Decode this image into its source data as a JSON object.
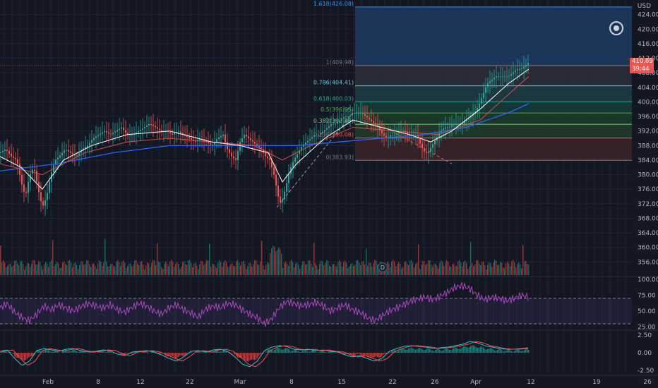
{
  "currency": "USD",
  "last_price": "410.89",
  "countdown": "39:44",
  "event_marker": "D",
  "chart_data": [
    {
      "type": "line",
      "panel": "price",
      "description": "Candlestick price chart with moving averages, Fibonacci retracement and volume",
      "ylim": [
        352,
        428
      ],
      "y_ticks": [
        "424.00",
        "420.00",
        "416.00",
        "412.00",
        "408.00",
        "404.00",
        "400.00",
        "396.00",
        "392.00",
        "388.00",
        "384.00",
        "380.00",
        "376.00",
        "372.00",
        "368.00",
        "364.00",
        "360.00",
        "356.00"
      ],
      "y_tick_values": [
        424,
        420,
        416,
        412,
        408,
        404,
        400,
        396,
        392,
        388,
        384,
        380,
        376,
        372,
        368,
        364,
        360,
        356
      ],
      "x_ticks": [
        "Feb",
        "8",
        "12",
        "22",
        "Mar",
        "8",
        "15",
        "22",
        "26",
        "Apr",
        "12",
        "19",
        "26"
      ],
      "close_path": [
        [
          0,
          386
        ],
        [
          8,
          387
        ],
        [
          16,
          385
        ],
        [
          24,
          384
        ],
        [
          30,
          378
        ],
        [
          36,
          374
        ],
        [
          42,
          380
        ],
        [
          48,
          382
        ],
        [
          54,
          376
        ],
        [
          60,
          371
        ],
        [
          66,
          374
        ],
        [
          72,
          380
        ],
        [
          78,
          384
        ],
        [
          84,
          385
        ],
        [
          92,
          387
        ],
        [
          100,
          386
        ],
        [
          108,
          385
        ],
        [
          116,
          387
        ],
        [
          124,
          388
        ],
        [
          132,
          390
        ],
        [
          140,
          391
        ],
        [
          148,
          392
        ],
        [
          156,
          391
        ],
        [
          164,
          392
        ],
        [
          172,
          393
        ],
        [
          180,
          391
        ],
        [
          188,
          391
        ],
        [
          196,
          392
        ],
        [
          204,
          393
        ],
        [
          212,
          394
        ],
        [
          220,
          393
        ],
        [
          228,
          392
        ],
        [
          236,
          392
        ],
        [
          244,
          391
        ],
        [
          252,
          392
        ],
        [
          260,
          391
        ],
        [
          268,
          390
        ],
        [
          276,
          389
        ],
        [
          284,
          390
        ],
        [
          292,
          389
        ],
        [
          300,
          388
        ],
        [
          308,
          390
        ],
        [
          316,
          391
        ],
        [
          322,
          387
        ],
        [
          328,
          385
        ],
        [
          334,
          384
        ],
        [
          340,
          389
        ],
        [
          346,
          391
        ],
        [
          352,
          390
        ],
        [
          358,
          389
        ],
        [
          364,
          388
        ],
        [
          370,
          387
        ],
        [
          376,
          385
        ],
        [
          382,
          384
        ],
        [
          388,
          380
        ],
        [
          394,
          374
        ],
        [
          398,
          372
        ],
        [
          404,
          376
        ],
        [
          410,
          381
        ],
        [
          416,
          384
        ],
        [
          422,
          386
        ],
        [
          428,
          388
        ],
        [
          434,
          389
        ],
        [
          440,
          390
        ],
        [
          446,
          391
        ],
        [
          452,
          391
        ],
        [
          458,
          392
        ],
        [
          464,
          393
        ],
        [
          470,
          394
        ],
        [
          476,
          394
        ],
        [
          482,
          395
        ],
        [
          488,
          396
        ],
        [
          494,
          396
        ],
        [
          500,
          397
        ],
        [
          506,
          397
        ],
        [
          512,
          397
        ],
        [
          518,
          396
        ],
        [
          524,
          395
        ],
        [
          530,
          394
        ],
        [
          536,
          393
        ],
        [
          542,
          391
        ],
        [
          548,
          390
        ],
        [
          554,
          391
        ],
        [
          560,
          391
        ],
        [
          566,
          392
        ],
        [
          572,
          392
        ],
        [
          578,
          391
        ],
        [
          584,
          391
        ],
        [
          590,
          391
        ],
        [
          596,
          388
        ],
        [
          602,
          386
        ],
        [
          606,
          386
        ],
        [
          612,
          388
        ],
        [
          618,
          390
        ],
        [
          624,
          392
        ],
        [
          630,
          393
        ],
        [
          636,
          393
        ],
        [
          642,
          394
        ],
        [
          648,
          394
        ],
        [
          654,
          394
        ],
        [
          660,
          395
        ],
        [
          666,
          396
        ],
        [
          672,
          397
        ],
        [
          678,
          399
        ],
        [
          684,
          402
        ],
        [
          690,
          405
        ],
        [
          696,
          406
        ],
        [
          702,
          407
        ],
        [
          708,
          407
        ],
        [
          714,
          407
        ],
        [
          720,
          407
        ],
        [
          726,
          408
        ],
        [
          732,
          409
        ],
        [
          738,
          409
        ],
        [
          744,
          410
        ],
        [
          749,
          410.89
        ]
      ],
      "ma_fast": [
        [
          0,
          385
        ],
        [
          30,
          382
        ],
        [
          60,
          376
        ],
        [
          90,
          384
        ],
        [
          130,
          388
        ],
        [
          180,
          391
        ],
        [
          240,
          392
        ],
        [
          300,
          389
        ],
        [
          340,
          388
        ],
        [
          380,
          386
        ],
        [
          400,
          378
        ],
        [
          420,
          383
        ],
        [
          460,
          390
        ],
        [
          500,
          395
        ],
        [
          540,
          393
        ],
        [
          580,
          391
        ],
        [
          610,
          389
        ],
        [
          640,
          392
        ],
        [
          680,
          398
        ],
        [
          720,
          405
        ],
        [
          749,
          409
        ]
      ],
      "ma_slow": [
        [
          0,
          383
        ],
        [
          60,
          380
        ],
        [
          120,
          386
        ],
        [
          180,
          389
        ],
        [
          240,
          390
        ],
        [
          300,
          389
        ],
        [
          360,
          388
        ],
        [
          400,
          384
        ],
        [
          440,
          388
        ],
        [
          500,
          393
        ],
        [
          560,
          392
        ],
        [
          620,
          391
        ],
        [
          680,
          395
        ],
        [
          720,
          402
        ],
        [
          749,
          407
        ]
      ],
      "ma_long": [
        [
          0,
          381
        ],
        [
          80,
          383
        ],
        [
          160,
          386
        ],
        [
          240,
          388
        ],
        [
          300,
          388
        ],
        [
          360,
          388
        ],
        [
          420,
          388
        ],
        [
          480,
          389
        ],
        [
          540,
          390
        ],
        [
          600,
          391
        ],
        [
          660,
          393
        ],
        [
          720,
          397
        ],
        [
          749,
          399.5
        ]
      ],
      "fibonacci_levels": [
        {
          "label": "1.618(426.08)",
          "value": 426.08,
          "color": "#2196f3"
        },
        {
          "label": "1(409.98)",
          "value": 409.98,
          "color": "#787b86"
        },
        {
          "label": "0.786(404.41)",
          "value": 404.41,
          "color": "#4dd0e1"
        },
        {
          "label": "0.618(400.03)",
          "value": 400.03,
          "color": "#26a69a"
        },
        {
          "label": "0.5(396.95)",
          "value": 396.95,
          "color": "#4caf50"
        },
        {
          "label": "0.382(393.86)",
          "value": 393.86,
          "color": "#81c784"
        },
        {
          "label": "0.236(390.08)",
          "value": 390.08,
          "color": "#ef5350"
        },
        {
          "label": "0(383.93)",
          "value": 383.93,
          "color": "#787b86"
        }
      ]
    },
    {
      "type": "line",
      "panel": "rsi",
      "ylim": [
        20,
        100
      ],
      "y_ticks": [
        "100.00",
        "75.00",
        "50.00",
        "25.00"
      ],
      "y_tick_values": [
        100,
        75,
        50,
        25
      ],
      "bands": [
        70,
        30
      ],
      "values": [
        55,
        62,
        48,
        40,
        35,
        45,
        58,
        52,
        60,
        55,
        50,
        57,
        62,
        58,
        55,
        60,
        52,
        48,
        56,
        62,
        58,
        50,
        45,
        55,
        60,
        52,
        47,
        40,
        53,
        58,
        55,
        62,
        60,
        52,
        45,
        40,
        30,
        38,
        55,
        65,
        62,
        58,
        60,
        64,
        58,
        50,
        55,
        60,
        52,
        48,
        40,
        35,
        42,
        50,
        55,
        60,
        66,
        70,
        72,
        68,
        74,
        80,
        88,
        90,
        85,
        75,
        68,
        72,
        70,
        66,
        70,
        75,
        72
      ]
    },
    {
      "type": "bar",
      "panel": "macd",
      "ylim": [
        -3,
        3
      ],
      "y_ticks": [
        "2.50",
        "0.00",
        "-2.50"
      ],
      "y_tick_values": [
        2.5,
        0,
        -2.5
      ],
      "values": [
        0.2,
        0.4,
        -0.8,
        -1.8,
        -1.2,
        0.3,
        0.6,
        0.4,
        0.2,
        0.5,
        0.6,
        0.3,
        0.1,
        0.2,
        0.4,
        0.3,
        -0.2,
        -0.4,
        0.1,
        0.2,
        0.3,
        0.1,
        -0.3,
        -0.8,
        -1.2,
        -0.6,
        0.2,
        0.3,
        0.1,
        0.4,
        0.5,
        0.2,
        -0.6,
        -1.6,
        -2.0,
        -1.2,
        0.3,
        0.8,
        1.0,
        0.9,
        0.5,
        0.4,
        0.5,
        0.3,
        0.4,
        0.2,
        0.1,
        -0.3,
        -0.6,
        -0.4,
        -0.8,
        -1.2,
        -0.8,
        0.2,
        0.6,
        0.9,
        1.0,
        0.9,
        0.8,
        0.6,
        0.7,
        0.8,
        1.0,
        1.2,
        1.6,
        1.4,
        1.0,
        0.8,
        0.6,
        0.5,
        0.5,
        0.6,
        0.7
      ]
    }
  ],
  "colors": {
    "background": "#131722",
    "up": "#26a69a",
    "down": "#ef5350",
    "ma_fast": "#ffffff",
    "ma_slow": "#ef5350",
    "ma_long": "#2962ff",
    "rsi": "#ab47bc",
    "macd_signal": "#ef5350",
    "macd_line": "#26c6da"
  }
}
